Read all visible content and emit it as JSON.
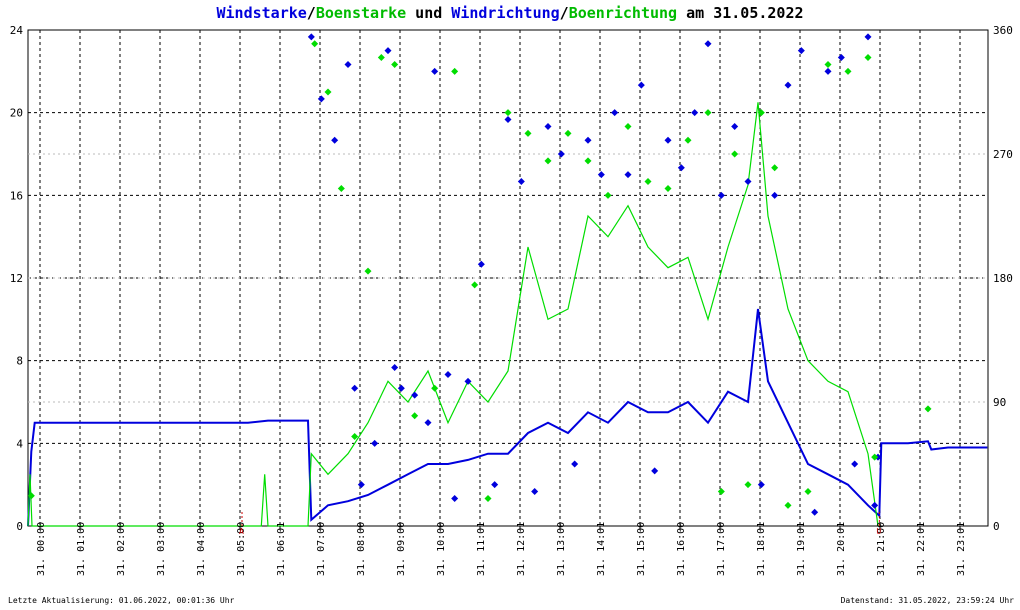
{
  "title": {
    "part1": "Windstarke",
    "sep1": "/",
    "part2": "Boenstarke",
    "mid": " und ",
    "part3": "Windrichtung",
    "sep2": "/",
    "part4": "Boenrichtung",
    "tail": " am 31.05.2022"
  },
  "colors": {
    "wind": "#0000dd",
    "gust": "#00dd00",
    "title_black": "#000000",
    "grid": "#000000",
    "marker": "#cc0000"
  },
  "footer": {
    "left": "Letzte Aktualisierung: 01.06.2022, 00:01:36 Uhr",
    "right": "Datenstand: 31.05.2022, 23:59:24 Uhr"
  },
  "markers": [
    {
      "label": "A",
      "x": "05:21"
    },
    {
      "label": "U",
      "x": "21:17"
    }
  ],
  "chart_data": {
    "type": "line",
    "x_unit": "time of day 31.05.2022",
    "xlim": [
      "00:00",
      "24:00"
    ],
    "x_tick_labels": [
      "31. 00:00",
      "31. 01:00",
      "31. 02:00",
      "31. 03:00",
      "31. 04:00",
      "31. 05:00",
      "31. 06:01",
      "31. 07:00",
      "31. 08:00",
      "31. 09:00",
      "31. 10:00",
      "31. 11:01",
      "31. 12:01",
      "31. 13:00",
      "31. 14:01",
      "31. 15:00",
      "31. 16:00",
      "31. 17:00",
      "31. 18:01",
      "31. 19:01",
      "31. 20:01",
      "31. 21:00",
      "31. 22:01",
      "31. 23:01"
    ],
    "y_left": {
      "ticks": [
        0,
        4,
        8,
        12,
        16,
        20,
        24
      ],
      "ylim": [
        0,
        24
      ]
    },
    "y_right": {
      "ticks": [
        0,
        90,
        180,
        270,
        360
      ],
      "ylim": [
        0,
        360
      ]
    },
    "grid": true,
    "series": [
      {
        "name": "Windstarke",
        "axis": "left",
        "style": "line",
        "color": "#0000dd",
        "points": [
          [
            "00:00",
            0
          ],
          [
            "00:05",
            3.6
          ],
          [
            "00:10",
            5.0
          ],
          [
            "01:00",
            5.0
          ],
          [
            "02:00",
            5.0
          ],
          [
            "03:00",
            5.0
          ],
          [
            "04:00",
            5.0
          ],
          [
            "05:00",
            5.0
          ],
          [
            "05:30",
            5.0
          ],
          [
            "06:00",
            5.1
          ],
          [
            "07:00",
            5.1
          ],
          [
            "07:05",
            0.3
          ],
          [
            "07:30",
            1.0
          ],
          [
            "08:00",
            1.2
          ],
          [
            "08:30",
            1.5
          ],
          [
            "09:00",
            2.0
          ],
          [
            "09:30",
            2.5
          ],
          [
            "10:00",
            3.0
          ],
          [
            "10:30",
            3.0
          ],
          [
            "11:00",
            3.2
          ],
          [
            "11:30",
            3.5
          ],
          [
            "12:00",
            3.5
          ],
          [
            "12:30",
            4.5
          ],
          [
            "13:00",
            5.0
          ],
          [
            "13:30",
            4.5
          ],
          [
            "14:00",
            5.5
          ],
          [
            "14:30",
            5.0
          ],
          [
            "15:00",
            6.0
          ],
          [
            "15:30",
            5.5
          ],
          [
            "16:00",
            5.5
          ],
          [
            "16:30",
            6.0
          ],
          [
            "17:00",
            5.0
          ],
          [
            "17:30",
            6.5
          ],
          [
            "18:00",
            6.0
          ],
          [
            "18:15",
            10.5
          ],
          [
            "18:30",
            7.0
          ],
          [
            "19:00",
            5.0
          ],
          [
            "19:30",
            3.0
          ],
          [
            "20:00",
            2.5
          ],
          [
            "20:30",
            2.0
          ],
          [
            "21:00",
            1.0
          ],
          [
            "21:17",
            0.5
          ],
          [
            "21:20",
            4.0
          ],
          [
            "22:00",
            4.0
          ],
          [
            "22:30",
            4.1
          ],
          [
            "22:35",
            3.7
          ],
          [
            "23:00",
            3.8
          ],
          [
            "23:59",
            3.8
          ]
        ]
      },
      {
        "name": "Boenstarke",
        "axis": "left",
        "style": "line",
        "color": "#00dd00",
        "points": [
          [
            "00:00",
            0
          ],
          [
            "00:03",
            2.5
          ],
          [
            "00:06",
            0
          ],
          [
            "05:50",
            0
          ],
          [
            "05:55",
            2.5
          ],
          [
            "06:00",
            0
          ],
          [
            "07:00",
            0
          ],
          [
            "07:05",
            3.5
          ],
          [
            "07:30",
            2.5
          ],
          [
            "08:00",
            3.5
          ],
          [
            "08:30",
            5.0
          ],
          [
            "09:00",
            7.0
          ],
          [
            "09:30",
            6.0
          ],
          [
            "10:00",
            7.5
          ],
          [
            "10:30",
            5.0
          ],
          [
            "11:00",
            7.0
          ],
          [
            "11:30",
            6.0
          ],
          [
            "12:00",
            7.5
          ],
          [
            "12:30",
            13.5
          ],
          [
            "13:00",
            10.0
          ],
          [
            "13:30",
            10.5
          ],
          [
            "14:00",
            15.0
          ],
          [
            "14:30",
            14.0
          ],
          [
            "15:00",
            15.5
          ],
          [
            "15:30",
            13.5
          ],
          [
            "16:00",
            12.5
          ],
          [
            "16:30",
            13.0
          ],
          [
            "17:00",
            10.0
          ],
          [
            "17:30",
            13.5
          ],
          [
            "18:00",
            16.5
          ],
          [
            "18:15",
            20.5
          ],
          [
            "18:30",
            15.0
          ],
          [
            "19:00",
            10.5
          ],
          [
            "19:30",
            8.0
          ],
          [
            "20:00",
            7.0
          ],
          [
            "20:30",
            6.5
          ],
          [
            "21:00",
            3.5
          ],
          [
            "21:15",
            0
          ]
        ]
      },
      {
        "name": "Windrichtung",
        "axis": "right",
        "style": "points",
        "color": "#0000dd",
        "points": [
          [
            "07:05",
            355
          ],
          [
            "07:20",
            310
          ],
          [
            "07:40",
            280
          ],
          [
            "08:00",
            335
          ],
          [
            "08:10",
            100
          ],
          [
            "08:20",
            30
          ],
          [
            "08:40",
            60
          ],
          [
            "09:00",
            345
          ],
          [
            "09:10",
            115
          ],
          [
            "09:20",
            100
          ],
          [
            "09:40",
            95
          ],
          [
            "10:00",
            75
          ],
          [
            "10:10",
            330
          ],
          [
            "10:30",
            110
          ],
          [
            "10:40",
            20
          ],
          [
            "11:00",
            105
          ],
          [
            "11:20",
            190
          ],
          [
            "11:40",
            30
          ],
          [
            "12:00",
            295
          ],
          [
            "12:20",
            250
          ],
          [
            "12:40",
            25
          ],
          [
            "13:00",
            290
          ],
          [
            "13:20",
            270
          ],
          [
            "13:40",
            45
          ],
          [
            "14:00",
            280
          ],
          [
            "14:20",
            255
          ],
          [
            "14:40",
            300
          ],
          [
            "15:00",
            255
          ],
          [
            "15:20",
            320
          ],
          [
            "15:40",
            40
          ],
          [
            "16:00",
            280
          ],
          [
            "16:20",
            260
          ],
          [
            "16:40",
            300
          ],
          [
            "17:00",
            350
          ],
          [
            "17:20",
            240
          ],
          [
            "17:40",
            290
          ],
          [
            "18:00",
            250
          ],
          [
            "18:20",
            30
          ],
          [
            "18:40",
            240
          ],
          [
            "19:00",
            320
          ],
          [
            "19:20",
            345
          ],
          [
            "19:40",
            10
          ],
          [
            "20:00",
            330
          ],
          [
            "20:20",
            340
          ],
          [
            "20:40",
            45
          ],
          [
            "21:00",
            355
          ],
          [
            "21:10",
            15
          ],
          [
            "21:15",
            50
          ]
        ]
      },
      {
        "name": "Boenrichtung",
        "axis": "right",
        "style": "points",
        "color": "#00dd00",
        "points": [
          [
            "00:05",
            22
          ],
          [
            "07:10",
            350
          ],
          [
            "07:30",
            315
          ],
          [
            "07:50",
            245
          ],
          [
            "08:10",
            65
          ],
          [
            "08:30",
            185
          ],
          [
            "08:50",
            340
          ],
          [
            "09:10",
            335
          ],
          [
            "09:40",
            80
          ],
          [
            "10:10",
            100
          ],
          [
            "10:40",
            330
          ],
          [
            "11:10",
            175
          ],
          [
            "11:30",
            20
          ],
          [
            "12:00",
            300
          ],
          [
            "12:30",
            285
          ],
          [
            "13:00",
            265
          ],
          [
            "13:30",
            285
          ],
          [
            "14:00",
            265
          ],
          [
            "14:30",
            240
          ],
          [
            "15:00",
            290
          ],
          [
            "15:30",
            250
          ],
          [
            "16:00",
            245
          ],
          [
            "16:30",
            280
          ],
          [
            "17:00",
            300
          ],
          [
            "17:20",
            25
          ],
          [
            "17:40",
            270
          ],
          [
            "18:00",
            30
          ],
          [
            "18:20",
            300
          ],
          [
            "18:40",
            260
          ],
          [
            "19:00",
            15
          ],
          [
            "19:30",
            25
          ],
          [
            "20:00",
            335
          ],
          [
            "20:30",
            330
          ],
          [
            "21:00",
            340
          ],
          [
            "21:10",
            50
          ],
          [
            "22:30",
            85
          ]
        ]
      }
    ]
  }
}
